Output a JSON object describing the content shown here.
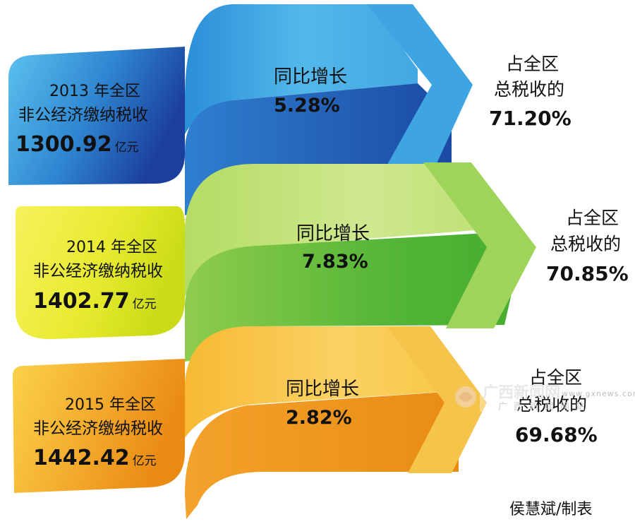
{
  "chart_data": {
    "type": "infographic",
    "unit": "亿元",
    "records": [
      {
        "year_label": "2013 年全区",
        "category": "非公经济缴纳税收",
        "amount": "1300.92",
        "value": 1300.92,
        "growth_label": "同比增长",
        "growth": "5.28%",
        "share_label_1": "占全区",
        "share_label_2": "总税收的",
        "share": "71.20%"
      },
      {
        "year_label": "2014 年全区",
        "category": "非公经济缴纳税收",
        "amount": "1402.77",
        "value": 1402.77,
        "growth_label": "同比增长",
        "growth": "7.83%",
        "share_label_1": "占全区",
        "share_label_2": "总税收的",
        "share": "70.85%"
      },
      {
        "year_label": "2015 年全区",
        "category": "非公经济缴纳税收",
        "amount": "1442.42",
        "value": 1442.42,
        "growth_label": "同比增长",
        "growth": "2.82%",
        "share_label_1": "占全区",
        "share_label_2": "总税收的",
        "share": "69.68%"
      }
    ]
  },
  "credit": "侯慧斌/制表",
  "watermark": {
    "logo_text": "广西新闻网",
    "url": "www.gxnews.com.cn",
    "subtitle": "广西新闻网站"
  },
  "colors": {
    "blue_light": "#4fb8ea",
    "blue_dark": "#1e4fa8",
    "green_light": "#c6e47a",
    "green_dark": "#4fb733",
    "yellow_light": "#f4ee55",
    "yellow_dark": "#c8dc1a",
    "orange_light": "#f9c64a",
    "orange_dark": "#ea8a12"
  }
}
